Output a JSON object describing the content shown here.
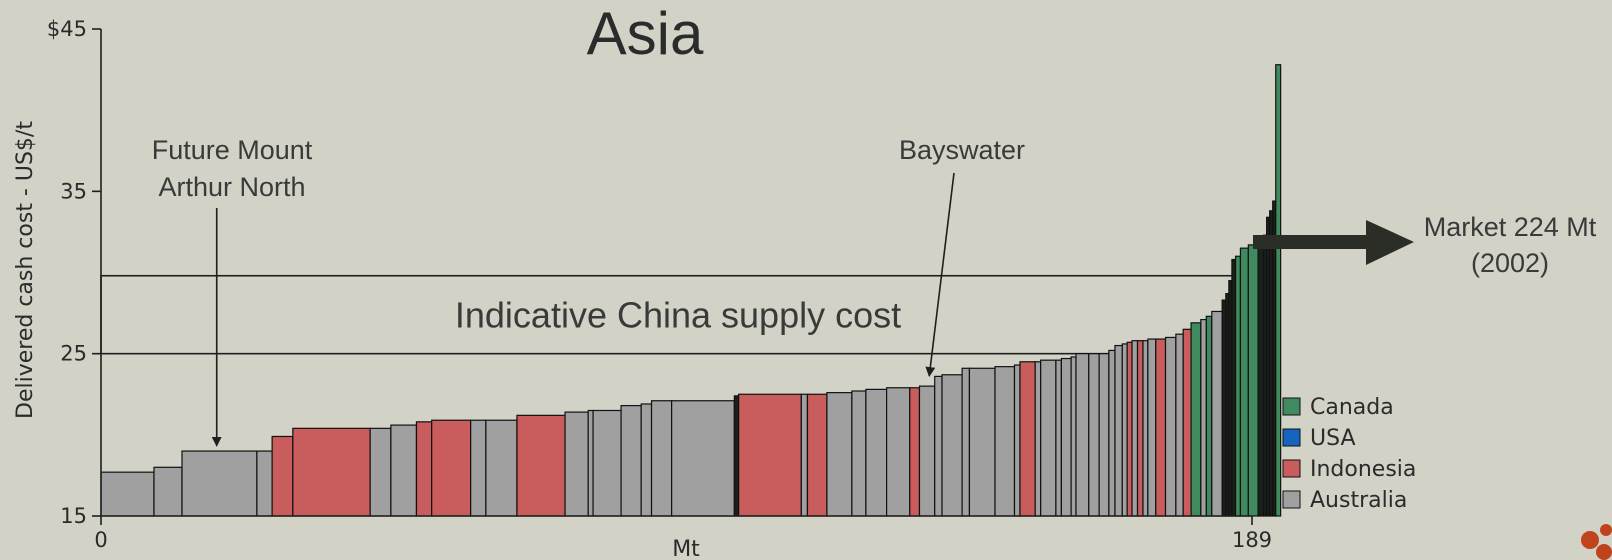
{
  "chart_data": {
    "type": "bar",
    "subtype": "cost-curve",
    "title": "Asia",
    "xlabel": "Mt",
    "ylabel": "Delivered cash cost - US$/t",
    "xlim": [
      0,
      189
    ],
    "ylim": [
      15,
      45
    ],
    "yticks": [
      "$45",
      "35",
      "25",
      "15"
    ],
    "yticks_values": [
      45,
      35,
      25,
      15
    ],
    "xticks": [
      "0",
      "189"
    ],
    "xticks_values": [
      0,
      189
    ],
    "colors": {
      "Canada": "#3f8a5e",
      "USA": "#1565c0",
      "Indonesia": "#c95c5c",
      "Australia": "#a0a0a0",
      "Unknown": "#1a1f1a"
    },
    "legend": [
      {
        "name": "Canada",
        "color": "#3f8a5e"
      },
      {
        "name": "USA",
        "color": "#1565c0"
      },
      {
        "name": "Indonesia",
        "color": "#c95c5c"
      },
      {
        "name": "Australia",
        "color": "#a0a0a0"
      }
    ],
    "legend_position": "bottom-right",
    "band": {
      "label": "Indicative China supply cost",
      "y_low": 25,
      "y_high": 29.8
    },
    "annotations": [
      {
        "lines": [
          "Future Mount",
          "Arthur North"
        ],
        "x": 19,
        "y": 19.2
      },
      {
        "lines": [
          "Bayswater"
        ],
        "x": 136,
        "y": 23.5
      }
    ],
    "market": {
      "lines": [
        "Market 224 Mt",
        "(2002)"
      ]
    },
    "bars": [
      {
        "width": 8.7,
        "value": 17.7,
        "country": "Australia"
      },
      {
        "width": 4.6,
        "value": 18.0,
        "country": "Australia"
      },
      {
        "width": 12.3,
        "value": 19.0,
        "country": "Australia"
      },
      {
        "width": 2.5,
        "value": 19.0,
        "country": "Australia"
      },
      {
        "width": 3.4,
        "value": 19.9,
        "country": "Indonesia"
      },
      {
        "width": 12.7,
        "value": 20.4,
        "country": "Indonesia"
      },
      {
        "width": 3.4,
        "value": 20.4,
        "country": "Australia"
      },
      {
        "width": 4.2,
        "value": 20.6,
        "country": "Australia"
      },
      {
        "width": 2.5,
        "value": 20.8,
        "country": "Indonesia"
      },
      {
        "width": 6.4,
        "value": 20.9,
        "country": "Indonesia"
      },
      {
        "width": 2.5,
        "value": 20.9,
        "country": "Australia"
      },
      {
        "width": 5.1,
        "value": 20.9,
        "country": "Australia"
      },
      {
        "width": 7.9,
        "value": 21.2,
        "country": "Indonesia"
      },
      {
        "width": 3.8,
        "value": 21.4,
        "country": "Australia"
      },
      {
        "width": 0.8,
        "value": 21.5,
        "country": "Australia"
      },
      {
        "width": 4.6,
        "value": 21.5,
        "country": "Australia"
      },
      {
        "width": 3.3,
        "value": 21.8,
        "country": "Australia"
      },
      {
        "width": 1.7,
        "value": 21.9,
        "country": "Australia"
      },
      {
        "width": 3.3,
        "value": 22.1,
        "country": "Australia"
      },
      {
        "width": 10.3,
        "value": 22.1,
        "country": "Australia"
      },
      {
        "width": 0.7,
        "value": 22.4,
        "country": "Unknown"
      },
      {
        "width": 10.3,
        "value": 22.5,
        "country": "Indonesia"
      },
      {
        "width": 1.0,
        "value": 22.5,
        "country": "Australia"
      },
      {
        "width": 3.2,
        "value": 22.5,
        "country": "Indonesia"
      },
      {
        "width": 4.1,
        "value": 22.6,
        "country": "Australia"
      },
      {
        "width": 2.3,
        "value": 22.7,
        "country": "Australia"
      },
      {
        "width": 3.4,
        "value": 22.8,
        "country": "Australia"
      },
      {
        "width": 3.8,
        "value": 22.9,
        "country": "Australia"
      },
      {
        "width": 1.6,
        "value": 22.9,
        "country": "Indonesia"
      },
      {
        "width": 2.5,
        "value": 23.0,
        "country": "Australia"
      },
      {
        "width": 1.2,
        "value": 23.6,
        "country": "Australia"
      },
      {
        "width": 3.3,
        "value": 23.7,
        "country": "Australia"
      },
      {
        "width": 1.2,
        "value": 24.1,
        "country": "Australia"
      },
      {
        "width": 4.2,
        "value": 24.1,
        "country": "Australia"
      },
      {
        "width": 3.2,
        "value": 24.2,
        "country": "Australia"
      },
      {
        "width": 0.9,
        "value": 24.3,
        "country": "Australia"
      },
      {
        "width": 2.5,
        "value": 24.5,
        "country": "Indonesia"
      },
      {
        "width": 0.9,
        "value": 24.5,
        "country": "Australia"
      },
      {
        "width": 2.5,
        "value": 24.6,
        "country": "Australia"
      },
      {
        "width": 0.9,
        "value": 24.6,
        "country": "Australia"
      },
      {
        "width": 1.6,
        "value": 24.7,
        "country": "Australia"
      },
      {
        "width": 0.8,
        "value": 24.8,
        "country": "Australia"
      },
      {
        "width": 2.1,
        "value": 25.0,
        "country": "Australia"
      },
      {
        "width": 1.7,
        "value": 25.0,
        "country": "Australia"
      },
      {
        "width": 1.6,
        "value": 25.0,
        "country": "Australia"
      },
      {
        "width": 1.0,
        "value": 25.2,
        "country": "Australia"
      },
      {
        "width": 1.2,
        "value": 25.5,
        "country": "Australia"
      },
      {
        "width": 0.8,
        "value": 25.6,
        "country": "Australia"
      },
      {
        "width": 0.8,
        "value": 25.7,
        "country": "Indonesia"
      },
      {
        "width": 0.9,
        "value": 25.8,
        "country": "Australia"
      },
      {
        "width": 0.9,
        "value": 25.8,
        "country": "Indonesia"
      },
      {
        "width": 0.8,
        "value": 25.8,
        "country": "Australia"
      },
      {
        "width": 1.3,
        "value": 25.9,
        "country": "Australia"
      },
      {
        "width": 1.6,
        "value": 25.9,
        "country": "Indonesia"
      },
      {
        "width": 1.7,
        "value": 26.0,
        "country": "Australia"
      },
      {
        "width": 1.2,
        "value": 26.2,
        "country": "Australia"
      },
      {
        "width": 1.3,
        "value": 26.5,
        "country": "Indonesia"
      },
      {
        "width": 1.6,
        "value": 26.9,
        "country": "Canada"
      },
      {
        "width": 0.9,
        "value": 27.1,
        "country": "Australia"
      },
      {
        "width": 0.9,
        "value": 27.3,
        "country": "Canada"
      },
      {
        "width": 1.7,
        "value": 27.6,
        "country": "Australia"
      },
      {
        "width": 0.6,
        "value": 28.3,
        "country": "Unknown"
      },
      {
        "width": 0.5,
        "value": 28.7,
        "country": "Unknown"
      },
      {
        "width": 0.5,
        "value": 29.5,
        "country": "Unknown"
      },
      {
        "width": 0.6,
        "value": 30.8,
        "country": "Unknown"
      },
      {
        "width": 0.8,
        "value": 31.0,
        "country": "Canada"
      },
      {
        "width": 1.3,
        "value": 31.5,
        "country": "Canada"
      },
      {
        "width": 1.6,
        "value": 31.7,
        "country": "Canada"
      },
      {
        "width": 0.9,
        "value": 32.0,
        "country": "Unknown"
      },
      {
        "width": 0.5,
        "value": 32.3,
        "country": "Unknown"
      },
      {
        "width": 0.5,
        "value": 33.4,
        "country": "Unknown"
      },
      {
        "width": 0.5,
        "value": 33.8,
        "country": "Unknown"
      },
      {
        "width": 0.5,
        "value": 34.4,
        "country": "Unknown"
      },
      {
        "width": 0.8,
        "value": 42.8,
        "country": "Canada"
      }
    ]
  }
}
